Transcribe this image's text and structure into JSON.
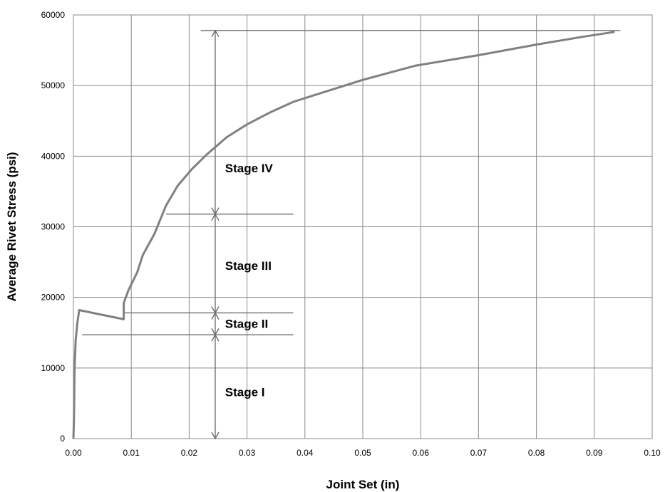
{
  "chart_data": {
    "type": "line",
    "title": "",
    "xlabel": "Joint Set (in)",
    "ylabel": "Average Rivet Stress (psi)",
    "xlim": [
      0,
      0.1
    ],
    "ylim": [
      0,
      60000
    ],
    "x_ticks": [
      "0.00",
      "0.01",
      "0.02",
      "0.03",
      "0.04",
      "0.05",
      "0.06",
      "0.07",
      "0.08",
      "0.09",
      "0.10"
    ],
    "y_ticks": [
      "0",
      "10000",
      "20000",
      "30000",
      "40000",
      "50000",
      "60000"
    ],
    "grid": true,
    "series": [
      {
        "color": "#808080",
        "points": [
          [
            0.0,
            0
          ],
          [
            0.0001,
            3000
          ],
          [
            0.0002,
            9800
          ],
          [
            0.0004,
            14000
          ],
          [
            0.0007,
            16500
          ],
          [
            0.001,
            18200
          ],
          [
            0.0087,
            16900
          ],
          [
            0.0087,
            19200
          ],
          [
            0.0095,
            21000
          ],
          [
            0.011,
            23500
          ],
          [
            0.012,
            26000
          ],
          [
            0.014,
            29000
          ],
          [
            0.016,
            33000
          ],
          [
            0.018,
            35800
          ],
          [
            0.0205,
            38200
          ],
          [
            0.023,
            40200
          ],
          [
            0.0265,
            42700
          ],
          [
            0.03,
            44500
          ],
          [
            0.034,
            46200
          ],
          [
            0.038,
            47700
          ],
          [
            0.043,
            49000
          ],
          [
            0.05,
            50800
          ],
          [
            0.059,
            52800
          ],
          [
            0.07,
            54300
          ],
          [
            0.08,
            55800
          ],
          [
            0.088,
            56900
          ],
          [
            0.0935,
            57600
          ]
        ]
      }
    ],
    "reference_lines": [
      {
        "y": 57800,
        "x_start": 0.022,
        "x_end": 0.0945
      },
      {
        "y": 31800,
        "x_start": 0.016,
        "x_end": 0.038
      },
      {
        "y": 17800,
        "x_start": 0.0087,
        "x_end": 0.038
      },
      {
        "y": 14700,
        "x_start": 0.0015,
        "x_end": 0.038
      }
    ],
    "arrow_x": 0.0245,
    "stages": [
      {
        "label": "Stage IV",
        "y_from": 31800,
        "y_to": 57800,
        "label_x": 0.0262,
        "label_y": 38300
      },
      {
        "label": "Stage III",
        "y_from": 17800,
        "y_to": 31800,
        "label_x": 0.0262,
        "label_y": 24500
      },
      {
        "label": "Stage II",
        "y_from": 14700,
        "y_to": 17800,
        "label_x": 0.0262,
        "label_y": 16300
      },
      {
        "label": "Stage I",
        "y_from": 0,
        "y_to": 14700,
        "label_x": 0.0262,
        "label_y": 6600
      }
    ]
  }
}
